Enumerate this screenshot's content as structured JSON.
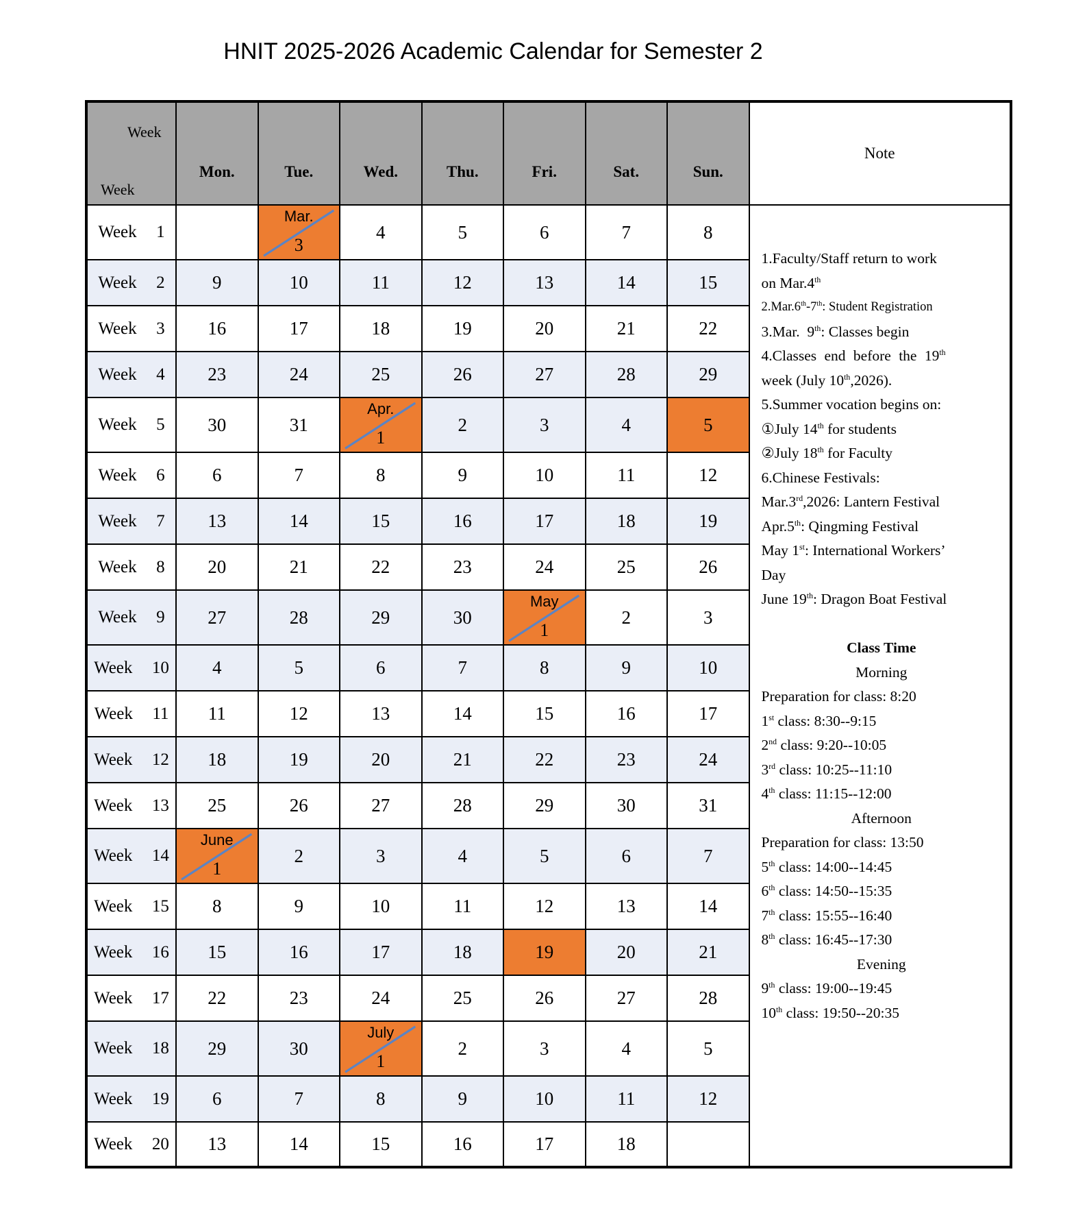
{
  "title": "HNIT 2025-2026 Academic Calendar for Semester 2",
  "colors": {
    "header_gray": "#A6A6A6",
    "band_light_blue": "#EAEEF7",
    "highlight_orange": "#ED7D31",
    "diagonal_line_blue": "#5B84C4",
    "border_black": "#000000"
  },
  "table": {
    "corner": {
      "top": "Week",
      "bottom": "Week"
    },
    "days": [
      "Mon.",
      "Tue.",
      "Wed.",
      "Thu.",
      "Fri.",
      "Sat.",
      "Sun."
    ],
    "note_header": "Note",
    "weeks": [
      {
        "label": "Week 1",
        "shade": "w",
        "cells": [
          {
            "d": "",
            "s": "w"
          },
          {
            "m": "Mar.",
            "d": "3",
            "s": "o",
            "diag": true
          },
          {
            "d": "4",
            "s": "w"
          },
          {
            "d": "5",
            "s": "w"
          },
          {
            "d": "6",
            "s": "w"
          },
          {
            "d": "7",
            "s": "w"
          },
          {
            "d": "8",
            "s": "w"
          }
        ]
      },
      {
        "label": "Week 2",
        "shade": "l",
        "cells": [
          {
            "d": "9",
            "s": "l"
          },
          {
            "d": "10",
            "s": "l"
          },
          {
            "d": "11",
            "s": "l"
          },
          {
            "d": "12",
            "s": "l"
          },
          {
            "d": "13",
            "s": "l"
          },
          {
            "d": "14",
            "s": "l"
          },
          {
            "d": "15",
            "s": "l"
          }
        ]
      },
      {
        "label": "Week 3",
        "shade": "w",
        "cells": [
          {
            "d": "16",
            "s": "w"
          },
          {
            "d": "17",
            "s": "w"
          },
          {
            "d": "18",
            "s": "w"
          },
          {
            "d": "19",
            "s": "w"
          },
          {
            "d": "20",
            "s": "w"
          },
          {
            "d": "21",
            "s": "w"
          },
          {
            "d": "22",
            "s": "w"
          }
        ]
      },
      {
        "label": "Week 4",
        "shade": "l",
        "cells": [
          {
            "d": "23",
            "s": "l"
          },
          {
            "d": "24",
            "s": "l"
          },
          {
            "d": "25",
            "s": "l"
          },
          {
            "d": "26",
            "s": "l"
          },
          {
            "d": "27",
            "s": "l"
          },
          {
            "d": "28",
            "s": "l"
          },
          {
            "d": "29",
            "s": "l"
          }
        ]
      },
      {
        "label": "Week 5",
        "shade": "w",
        "cells": [
          {
            "d": "30",
            "s": "w"
          },
          {
            "d": "31",
            "s": "w"
          },
          {
            "m": "Apr.",
            "d": "1",
            "s": "o",
            "diag": true
          },
          {
            "d": "2",
            "s": "l"
          },
          {
            "d": "3",
            "s": "l"
          },
          {
            "d": "4",
            "s": "l"
          },
          {
            "d": "5",
            "s": "o"
          }
        ]
      },
      {
        "label": "Week 6",
        "shade": "w",
        "cells": [
          {
            "d": "6",
            "s": "w"
          },
          {
            "d": "7",
            "s": "w"
          },
          {
            "d": "8",
            "s": "w"
          },
          {
            "d": "9",
            "s": "w"
          },
          {
            "d": "10",
            "s": "w"
          },
          {
            "d": "11",
            "s": "w"
          },
          {
            "d": "12",
            "s": "w"
          }
        ]
      },
      {
        "label": "Week 7",
        "shade": "l",
        "cells": [
          {
            "d": "13",
            "s": "l"
          },
          {
            "d": "14",
            "s": "l"
          },
          {
            "d": "15",
            "s": "l"
          },
          {
            "d": "16",
            "s": "l"
          },
          {
            "d": "17",
            "s": "l"
          },
          {
            "d": "18",
            "s": "l"
          },
          {
            "d": "19",
            "s": "l"
          }
        ]
      },
      {
        "label": "Week 8",
        "shade": "w",
        "cells": [
          {
            "d": "20",
            "s": "w"
          },
          {
            "d": "21",
            "s": "w"
          },
          {
            "d": "22",
            "s": "w"
          },
          {
            "d": "23",
            "s": "w"
          },
          {
            "d": "24",
            "s": "w"
          },
          {
            "d": "25",
            "s": "w"
          },
          {
            "d": "26",
            "s": "w"
          }
        ]
      },
      {
        "label": "Week 9",
        "shade": "l",
        "cells": [
          {
            "d": "27",
            "s": "l"
          },
          {
            "d": "28",
            "s": "l"
          },
          {
            "d": "29",
            "s": "l"
          },
          {
            "d": "30",
            "s": "l"
          },
          {
            "m": "May",
            "d": "1",
            "s": "o",
            "diag": true
          },
          {
            "d": "2",
            "s": "w"
          },
          {
            "d": "3",
            "s": "w"
          }
        ]
      },
      {
        "label": "Week 10",
        "shade": "l",
        "cells": [
          {
            "d": "4",
            "s": "l"
          },
          {
            "d": "5",
            "s": "l"
          },
          {
            "d": "6",
            "s": "l"
          },
          {
            "d": "7",
            "s": "l"
          },
          {
            "d": "8",
            "s": "l"
          },
          {
            "d": "9",
            "s": "l"
          },
          {
            "d": "10",
            "s": "l"
          }
        ]
      },
      {
        "label": "Week 11",
        "shade": "w",
        "cells": [
          {
            "d": "11",
            "s": "w"
          },
          {
            "d": "12",
            "s": "w"
          },
          {
            "d": "13",
            "s": "w"
          },
          {
            "d": "14",
            "s": "w"
          },
          {
            "d": "15",
            "s": "w"
          },
          {
            "d": "16",
            "s": "w"
          },
          {
            "d": "17",
            "s": "w"
          }
        ]
      },
      {
        "label": "Week 12",
        "shade": "l",
        "cells": [
          {
            "d": "18",
            "s": "l"
          },
          {
            "d": "19",
            "s": "l"
          },
          {
            "d": "20",
            "s": "l"
          },
          {
            "d": "21",
            "s": "l"
          },
          {
            "d": "22",
            "s": "l"
          },
          {
            "d": "23",
            "s": "l"
          },
          {
            "d": "24",
            "s": "l"
          }
        ]
      },
      {
        "label": "Week 13",
        "shade": "w",
        "cells": [
          {
            "d": "25",
            "s": "w"
          },
          {
            "d": "26",
            "s": "w"
          },
          {
            "d": "27",
            "s": "w"
          },
          {
            "d": "28",
            "s": "w"
          },
          {
            "d": "29",
            "s": "w"
          },
          {
            "d": "30",
            "s": "w"
          },
          {
            "d": "31",
            "s": "w"
          }
        ]
      },
      {
        "label": "Week 14",
        "shade": "l",
        "cells": [
          {
            "m": "June",
            "d": "1",
            "s": "o",
            "diag": true
          },
          {
            "d": "2",
            "s": "l"
          },
          {
            "d": "3",
            "s": "l"
          },
          {
            "d": "4",
            "s": "l"
          },
          {
            "d": "5",
            "s": "l"
          },
          {
            "d": "6",
            "s": "l"
          },
          {
            "d": "7",
            "s": "l"
          }
        ]
      },
      {
        "label": "Week 15",
        "shade": "w",
        "cells": [
          {
            "d": "8",
            "s": "w"
          },
          {
            "d": "9",
            "s": "w"
          },
          {
            "d": "10",
            "s": "w"
          },
          {
            "d": "11",
            "s": "w"
          },
          {
            "d": "12",
            "s": "w"
          },
          {
            "d": "13",
            "s": "w"
          },
          {
            "d": "14",
            "s": "w"
          }
        ]
      },
      {
        "label": "Week 16",
        "shade": "l",
        "cells": [
          {
            "d": "15",
            "s": "l"
          },
          {
            "d": "16",
            "s": "l"
          },
          {
            "d": "17",
            "s": "l"
          },
          {
            "d": "18",
            "s": "l"
          },
          {
            "d": "19",
            "s": "o"
          },
          {
            "d": "20",
            "s": "l"
          },
          {
            "d": "21",
            "s": "l"
          }
        ]
      },
      {
        "label": "Week 17",
        "shade": "w",
        "cells": [
          {
            "d": "22",
            "s": "w"
          },
          {
            "d": "23",
            "s": "w"
          },
          {
            "d": "24",
            "s": "w"
          },
          {
            "d": "25",
            "s": "w"
          },
          {
            "d": "26",
            "s": "w"
          },
          {
            "d": "27",
            "s": "w"
          },
          {
            "d": "28",
            "s": "w"
          }
        ]
      },
      {
        "label": "Week 18",
        "shade": "l",
        "cells": [
          {
            "d": "29",
            "s": "l"
          },
          {
            "d": "30",
            "s": "l"
          },
          {
            "m": "July",
            "d": "1",
            "s": "o",
            "diag": true
          },
          {
            "d": "2",
            "s": "w"
          },
          {
            "d": "3",
            "s": "w"
          },
          {
            "d": "4",
            "s": "w"
          },
          {
            "d": "5",
            "s": "w"
          }
        ]
      },
      {
        "label": "Week 19",
        "shade": "l",
        "cells": [
          {
            "d": "6",
            "s": "l"
          },
          {
            "d": "7",
            "s": "l"
          },
          {
            "d": "8",
            "s": "l"
          },
          {
            "d": "9",
            "s": "l"
          },
          {
            "d": "10",
            "s": "l"
          },
          {
            "d": "11",
            "s": "l"
          },
          {
            "d": "12",
            "s": "l"
          }
        ]
      },
      {
        "label": "Week 20",
        "shade": "w",
        "cells": [
          {
            "d": "13",
            "s": "w"
          },
          {
            "d": "14",
            "s": "w"
          },
          {
            "d": "15",
            "s": "w"
          },
          {
            "d": "16",
            "s": "w"
          },
          {
            "d": "17",
            "s": "w"
          },
          {
            "d": "18",
            "s": "w"
          },
          {
            "d": "",
            "s": "w"
          }
        ]
      }
    ]
  },
  "notes": [
    {
      "text": "1.Faculty/Staff return to work"
    },
    {
      "text": "on Mar.4^{th}"
    },
    {
      "text": "2.Mar.6^{th}-7^{th}: Student Registration",
      "size": "small"
    },
    {
      "text": "3.Mar.  9^{th}: Classes begin"
    },
    {
      "text": "4.Classes end before the 19^{th}",
      "spread": true
    },
    {
      "text": "week (July 10^{th},2026)."
    },
    {
      "text": "5.Summer vocation begins on:"
    },
    {
      "text": "①July 14^{th} for students"
    },
    {
      "text": "②July 18^{th} for Faculty"
    },
    {
      "text": "6.Chinese Festivals:"
    },
    {
      "text": "Mar.3^{rd},2026: Lantern Festival"
    },
    {
      "text": "Apr.5^{th}: Qingming Festival"
    },
    {
      "text": "May 1^{st}: International Workers’"
    },
    {
      "text": "Day"
    },
    {
      "text": "June 19^{th}: Dragon Boat Festival"
    },
    {
      "text": ""
    },
    {
      "text": "Class Time",
      "align": "center",
      "bold": true
    },
    {
      "text": "Morning",
      "align": "center"
    },
    {
      "text": "Preparation for class: 8:20"
    },
    {
      "text": "1^{st} class: 8:30--9:15"
    },
    {
      "text": "2^{nd} class: 9:20--10:05"
    },
    {
      "text": "3^{rd} class: 10:25--11:10"
    },
    {
      "text": "4^{th} class: 11:15--12:00"
    },
    {
      "text": "Afternoon",
      "align": "center"
    },
    {
      "text": "Preparation for class: 13:50"
    },
    {
      "text": "5^{th} class: 14:00--14:45"
    },
    {
      "text": "6^{th} class: 14:50--15:35"
    },
    {
      "text": "7^{th} class: 15:55--16:40"
    },
    {
      "text": "8^{th} class: 16:45--17:30"
    },
    {
      "text": "Evening",
      "align": "center"
    },
    {
      "text": "9^{th} class: 19:00--19:45"
    },
    {
      "text": "10^{th} class: 19:50--20:35"
    }
  ]
}
